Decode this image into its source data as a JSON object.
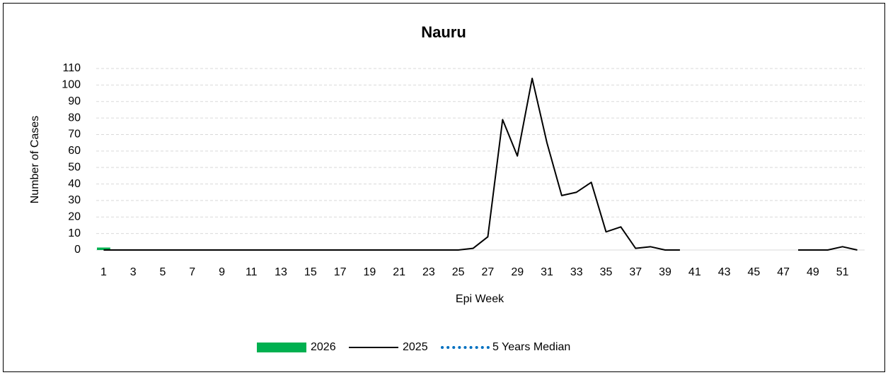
{
  "chart_data": {
    "type": "combo",
    "title": "Nauru",
    "x_label": "Epi Week",
    "y_label": "Number of Cases",
    "categories": [
      1,
      null,
      3,
      null,
      5,
      null,
      7,
      null,
      9,
      null,
      11,
      null,
      13,
      null,
      15,
      null,
      17,
      null,
      19,
      null,
      21,
      null,
      23,
      null,
      25,
      null,
      27,
      null,
      29,
      null,
      31,
      null,
      33,
      null,
      35,
      null,
      37,
      null,
      39,
      null,
      41,
      null,
      43,
      null,
      45,
      null,
      47,
      null,
      49,
      null,
      51,
      null
    ],
    "series": [
      {
        "name": "2026",
        "type": "bar",
        "color": "#00b050",
        "values": [
          1.5,
          null,
          null,
          null,
          null,
          null,
          null,
          null,
          null,
          null,
          null,
          null,
          null,
          null,
          null,
          null,
          null,
          null,
          null,
          null,
          null,
          null,
          null,
          null,
          null,
          null,
          null,
          null,
          null,
          null,
          null,
          null,
          null,
          null,
          null,
          null,
          null,
          null,
          null,
          null,
          null,
          null,
          null,
          null,
          null,
          null,
          null,
          null,
          null,
          null,
          null,
          null
        ]
      },
      {
        "name": "2025",
        "type": "line",
        "color": "#000000",
        "values": [
          0,
          0,
          0,
          0,
          0,
          0,
          0,
          0,
          0,
          0,
          0,
          0,
          0,
          0,
          0,
          0,
          0,
          0,
          0,
          0,
          0,
          0,
          0,
          0,
          0,
          1,
          8,
          79,
          57,
          104,
          65,
          33,
          35,
          41,
          11,
          14,
          1,
          2,
          0,
          0,
          null,
          null,
          null,
          null,
          null,
          null,
          null,
          0,
          0,
          0,
          2,
          0
        ]
      },
      {
        "name": "5 Years Median",
        "type": "line",
        "style": "dotted",
        "color": "#0070c0",
        "values": [
          null,
          null,
          null,
          null,
          null,
          null,
          null,
          null,
          null,
          null,
          null,
          null,
          null,
          null,
          null,
          null,
          null,
          null,
          null,
          null,
          null,
          null,
          null,
          null,
          null,
          null,
          null,
          null,
          null,
          null,
          null,
          null,
          null,
          null,
          null,
          null,
          null,
          null,
          null,
          null,
          null,
          null,
          null,
          null,
          null,
          null,
          null,
          null,
          null,
          null,
          null,
          null
        ]
      }
    ],
    "ylim": [
      0,
      110
    ],
    "yticks": [
      0,
      10,
      20,
      30,
      40,
      50,
      60,
      70,
      80,
      90,
      100,
      110
    ],
    "grid": true
  }
}
